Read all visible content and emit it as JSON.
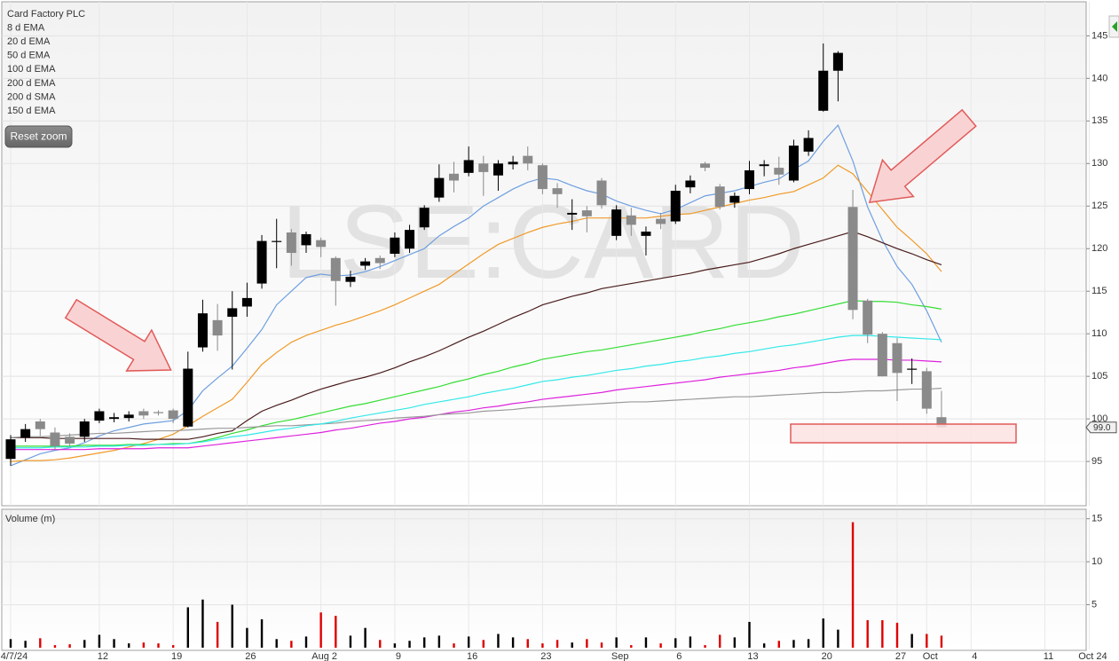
{
  "chart_data": {
    "type": "candlestick",
    "title": "Card Factory PLC",
    "watermark": "LSE:CARD",
    "reset_zoom": "Reset zoom",
    "categories": [
      "4/7/24",
      null,
      null,
      null,
      null,
      null,
      "12",
      null,
      null,
      null,
      null,
      "19",
      null,
      null,
      null,
      null,
      "26",
      null,
      null,
      null,
      null,
      "Aug 2",
      null,
      null,
      null,
      null,
      "9",
      null,
      null,
      null,
      null,
      "16",
      null,
      null,
      null,
      null,
      "23",
      null,
      null,
      null,
      null,
      "Sep",
      null,
      null,
      null,
      "6",
      null,
      null,
      null,
      null,
      "13",
      null,
      null,
      null,
      null,
      "20",
      null,
      null,
      null,
      null,
      "27",
      null,
      "Oct",
      null,
      null,
      "4",
      null,
      null,
      null,
      null,
      "11",
      null,
      null,
      "Oct 24"
    ],
    "open": [
      95.3,
      97.8,
      99.7,
      98.4,
      97.9,
      97.9,
      99.8,
      100.0,
      100.1,
      100.9,
      100.8,
      101.0,
      99.1,
      108.4,
      111.6,
      112.0,
      113.2,
      115.9,
      120.8,
      121.9,
      120.4,
      121.0,
      118.9,
      116.1,
      118.0,
      118.9,
      119.4,
      120.0,
      122.5,
      126.0,
      128.8,
      128.9,
      130.0,
      128.6,
      129.9,
      130.9,
      129.8,
      127.1,
      124.0,
      124.5,
      128.0,
      121.5,
      123.9,
      121.5,
      123.5,
      123.2,
      127.2,
      130.0,
      127.3,
      125.4,
      127.0,
      129.7,
      129.5,
      128.0,
      131.4,
      136.2,
      140.9,
      124.9,
      113.9,
      110.0,
      108.9,
      105.9,
      105.6,
      100.2,
      null,
      null,
      null,
      null,
      null,
      null,
      null,
      null,
      null,
      null
    ],
    "high": [
      98.1,
      99.4,
      100.0,
      99.0,
      98.3,
      100.0,
      101.2,
      100.7,
      100.9,
      101.2,
      101.0,
      101.2,
      107.9,
      114.0,
      113.5,
      115.0,
      116.0,
      121.6,
      123.5,
      122.3,
      122.0,
      121.3,
      119.1,
      117.4,
      118.9,
      119.2,
      121.9,
      122.8,
      125.1,
      129.9,
      130.2,
      132.0,
      130.9,
      130.4,
      130.9,
      132.0,
      130.0,
      127.7,
      125.8,
      125.0,
      128.3,
      125.1,
      124.8,
      122.6,
      124.2,
      127.5,
      128.6,
      130.2,
      127.6,
      126.6,
      130.3,
      130.4,
      130.8,
      132.8,
      133.9,
      144.1,
      143.2,
      126.9,
      114.1,
      110.2,
      109.5,
      107.1,
      106.0,
      103.3,
      null,
      null,
      null,
      null,
      null,
      null,
      null,
      null,
      null,
      null
    ],
    "low": [
      94.5,
      97.3,
      98.0,
      96.3,
      96.8,
      97.3,
      99.5,
      99.6,
      99.7,
      100.0,
      100.4,
      99.5,
      99.0,
      107.9,
      108.0,
      105.8,
      112.0,
      115.3,
      117.7,
      118.0,
      119.5,
      119.0,
      113.3,
      115.5,
      117.5,
      117.6,
      119.0,
      119.5,
      122.2,
      125.5,
      126.6,
      128.5,
      126.2,
      126.8,
      129.3,
      129.2,
      126.4,
      124.8,
      122.2,
      121.9,
      124.7,
      121.0,
      121.5,
      119.2,
      122.3,
      122.9,
      126.5,
      129.1,
      124.6,
      124.8,
      126.4,
      128.5,
      127.5,
      127.8,
      130.9,
      136.1,
      137.3,
      111.7,
      108.9,
      105.0,
      102.1,
      104.1,
      100.6,
      99.0,
      null,
      null,
      null,
      null,
      null,
      null,
      null,
      null,
      null,
      null
    ],
    "close": [
      97.6,
      98.8,
      98.8,
      96.8,
      97.1,
      99.7,
      100.9,
      100.2,
      100.5,
      100.4,
      100.7,
      100.0,
      105.9,
      112.4,
      109.8,
      113.0,
      114.2,
      120.9,
      120.9,
      119.5,
      121.7,
      120.2,
      116.2,
      116.7,
      118.5,
      118.3,
      121.3,
      122.2,
      124.8,
      128.3,
      128.0,
      130.4,
      129.0,
      130.0,
      130.2,
      130.0,
      127.0,
      126.4,
      124.2,
      123.8,
      125.1,
      124.6,
      122.8,
      122.0,
      122.9,
      126.8,
      128.0,
      129.5,
      124.9,
      126.2,
      129.2,
      129.9,
      128.7,
      132.1,
      133.0,
      140.9,
      143.0,
      112.8,
      109.9,
      105.0,
      105.4,
      105.9,
      101.2,
      99.0,
      null,
      null,
      null,
      null,
      null,
      null,
      null,
      null,
      null,
      null
    ],
    "up_color": "#000000",
    "down_color": "#8a8a8a",
    "ylim": [
      89.8,
      149
    ],
    "yticks": [
      95,
      100,
      105,
      110,
      115,
      120,
      125,
      130,
      135,
      140,
      145
    ],
    "grid": true,
    "last_price": {
      "value": 99.0,
      "label": "99.0"
    },
    "series": [
      {
        "name": "8 d EMA",
        "color": "#6f9fe0",
        "values": [
          94.5,
          95.2,
          95.9,
          96.3,
          96.6,
          97.2,
          98.0,
          98.6,
          99.0,
          99.4,
          99.6,
          99.8,
          101.0,
          103.3,
          104.8,
          106.2,
          108.3,
          110.5,
          113.4,
          115.0,
          116.6,
          117.0,
          116.8,
          116.9,
          117.3,
          117.9,
          118.6,
          119.3,
          120.0,
          121.5,
          122.6,
          123.6,
          125.0,
          126.0,
          127.0,
          127.8,
          128.3,
          128.1,
          127.4,
          126.8,
          126.4,
          125.6,
          125.0,
          124.5,
          124.1,
          124.6,
          125.4,
          126.2,
          126.5,
          126.8,
          127.3,
          127.8,
          128.2,
          129.3,
          130.3,
          132.6,
          134.5,
          130.3,
          124.9,
          121.0,
          117.9,
          115.8,
          112.7,
          109.0,
          null,
          null,
          null,
          null,
          null,
          null,
          null,
          null,
          null,
          null
        ]
      },
      {
        "name": "20 d EMA",
        "color": "#f09a28",
        "values": [
          95.0,
          95.1,
          95.1,
          95.2,
          95.4,
          95.7,
          96.0,
          96.3,
          96.7,
          97.1,
          97.6,
          98.2,
          99.2,
          100.3,
          101.3,
          102.3,
          104.3,
          106.4,
          107.8,
          109.0,
          109.8,
          110.4,
          111.0,
          111.5,
          112.1,
          112.7,
          113.4,
          114.2,
          115.0,
          115.8,
          117.0,
          118.2,
          119.4,
          120.5,
          121.2,
          121.9,
          122.5,
          122.9,
          123.2,
          123.6,
          123.6,
          123.6,
          123.6,
          123.6,
          123.8,
          124.0,
          124.1,
          124.5,
          124.9,
          125.3,
          125.7,
          126.0,
          126.4,
          126.7,
          127.5,
          128.3,
          129.8,
          128.8,
          126.7,
          124.6,
          122.5,
          121.0,
          119.4,
          117.3,
          null,
          null,
          null,
          null,
          null,
          null,
          null,
          null,
          null,
          null
        ]
      },
      {
        "name": "50 d EMA",
        "color": "#4a1c1c",
        "values": [
          97.8,
          97.8,
          97.8,
          97.7,
          97.7,
          97.7,
          97.7,
          97.7,
          97.7,
          97.6,
          97.6,
          97.6,
          97.6,
          97.9,
          98.3,
          98.6,
          99.8,
          100.9,
          101.6,
          102.2,
          102.9,
          103.5,
          104.0,
          104.5,
          104.9,
          105.4,
          106.0,
          106.7,
          107.3,
          108.0,
          108.8,
          109.6,
          110.3,
          111.1,
          111.9,
          112.6,
          113.4,
          113.9,
          114.4,
          114.8,
          115.3,
          115.6,
          115.9,
          116.2,
          116.5,
          116.8,
          117.1,
          117.5,
          117.8,
          118.1,
          118.4,
          118.9,
          119.4,
          120.0,
          120.5,
          121.0,
          121.5,
          122.0,
          121.4,
          120.7,
          120.0,
          119.4,
          118.7,
          118.1,
          null,
          null,
          null,
          null,
          null,
          null,
          null,
          null,
          null,
          null
        ]
      },
      {
        "name": "100 d EMA",
        "color": "#33dd33",
        "values": [
          96.8,
          96.8,
          96.8,
          96.8,
          96.8,
          96.9,
          96.9,
          96.9,
          97.0,
          97.0,
          97.0,
          97.1,
          97.1,
          97.4,
          97.8,
          98.3,
          98.7,
          99.2,
          99.6,
          99.9,
          100.3,
          100.7,
          101.1,
          101.5,
          101.8,
          102.2,
          102.6,
          103.0,
          103.4,
          103.8,
          104.3,
          104.7,
          105.2,
          105.6,
          106.1,
          106.5,
          107.0,
          107.3,
          107.6,
          107.9,
          108.1,
          108.4,
          108.7,
          109.0,
          109.3,
          109.6,
          109.9,
          110.3,
          110.6,
          111.0,
          111.3,
          111.6,
          112.0,
          112.3,
          112.7,
          113.1,
          113.5,
          113.9,
          113.8,
          113.8,
          113.7,
          113.4,
          113.2,
          112.9,
          null,
          null,
          null,
          null,
          null,
          null,
          null,
          null,
          null,
          null
        ]
      },
      {
        "name": "200 d EMA",
        "color": "#dd22dd",
        "values": [
          96.4,
          96.4,
          96.4,
          96.4,
          96.4,
          96.4,
          96.5,
          96.5,
          96.5,
          96.5,
          96.6,
          96.6,
          96.6,
          96.8,
          97.0,
          97.2,
          97.4,
          97.6,
          97.8,
          98.0,
          98.2,
          98.4,
          98.7,
          98.9,
          99.2,
          99.5,
          99.7,
          100.0,
          100.2,
          100.5,
          100.8,
          101.0,
          101.3,
          101.5,
          101.8,
          102.0,
          102.3,
          102.5,
          102.7,
          102.9,
          103.1,
          103.4,
          103.6,
          103.8,
          104.0,
          104.2,
          104.4,
          104.6,
          104.9,
          105.1,
          105.3,
          105.5,
          105.7,
          106.0,
          106.2,
          106.5,
          106.8,
          107.0,
          107.0,
          107.0,
          106.9,
          106.9,
          106.8,
          106.7,
          null,
          null,
          null,
          null,
          null,
          null,
          null,
          null,
          null,
          null
        ]
      },
      {
        "name": "200 d SMA",
        "color": "#999999",
        "values": [
          97.8,
          97.9,
          97.9,
          98.0,
          98.1,
          98.2,
          98.3,
          98.3,
          98.4,
          98.5,
          98.6,
          98.6,
          98.7,
          98.8,
          98.9,
          98.9,
          99.0,
          99.1,
          99.2,
          99.2,
          99.3,
          99.4,
          99.5,
          99.7,
          99.8,
          99.9,
          100.1,
          100.2,
          100.3,
          100.5,
          100.6,
          100.7,
          100.9,
          101.0,
          101.1,
          101.3,
          101.4,
          101.5,
          101.6,
          101.7,
          101.8,
          101.9,
          102.0,
          102.0,
          102.1,
          102.2,
          102.3,
          102.4,
          102.5,
          102.6,
          102.6,
          102.7,
          102.8,
          102.9,
          103.0,
          103.1,
          103.1,
          103.2,
          103.3,
          103.3,
          103.4,
          103.5,
          103.5,
          103.6,
          null,
          null,
          null,
          null,
          null,
          null,
          null,
          null,
          null,
          null
        ]
      },
      {
        "name": "150 d EMA",
        "color": "#33e8e8",
        "values": [
          96.6,
          96.6,
          96.6,
          96.7,
          96.7,
          96.7,
          96.8,
          96.8,
          96.9,
          96.9,
          97.0,
          97.0,
          97.1,
          97.3,
          97.6,
          97.9,
          98.1,
          98.4,
          98.7,
          98.9,
          99.2,
          99.4,
          99.7,
          100.1,
          100.4,
          100.7,
          101.0,
          101.3,
          101.7,
          102.0,
          102.3,
          102.6,
          103.0,
          103.3,
          103.6,
          104.0,
          104.4,
          104.6,
          104.9,
          105.1,
          105.4,
          105.7,
          105.9,
          106.2,
          106.4,
          106.7,
          106.9,
          107.2,
          107.4,
          107.7,
          107.9,
          108.2,
          108.5,
          108.7,
          109.0,
          109.3,
          109.6,
          109.8,
          109.8,
          109.7,
          109.6,
          109.5,
          109.4,
          109.3,
          null,
          null,
          null,
          null,
          null,
          null,
          null,
          null,
          null,
          null
        ]
      }
    ],
    "volume": {
      "title": "Volume (m)",
      "values": [
        1.0,
        0.8,
        1.1,
        0.3,
        0.4,
        0.9,
        1.5,
        1.0,
        0.5,
        0.6,
        0.5,
        0.3,
        4.7,
        5.6,
        3.0,
        5.0,
        2.3,
        3.3,
        1.0,
        0.8,
        1.3,
        4.1,
        3.7,
        1.4,
        2.3,
        0.9,
        0.5,
        0.8,
        1.2,
        1.4,
        0.5,
        1.3,
        0.9,
        1.6,
        1.2,
        1.0,
        0.5,
        0.9,
        0.6,
        1.0,
        0.6,
        1.2,
        0.3,
        1.2,
        0.5,
        1.1,
        1.3,
        0.3,
        1.5,
        1.2,
        3.0,
        0.5,
        0.8,
        0.9,
        1.0,
        3.4,
        2.1,
        14.6,
        3.2,
        3.2,
        2.9,
        1.6,
        1.6,
        1.4,
        null,
        null,
        null,
        null,
        null,
        null,
        null,
        null,
        null,
        null
      ],
      "up_color": "#000000",
      "down_color": "#dd0000",
      "ylim": [
        0,
        16
      ],
      "yticks": [
        5,
        10,
        15
      ]
    }
  }
}
